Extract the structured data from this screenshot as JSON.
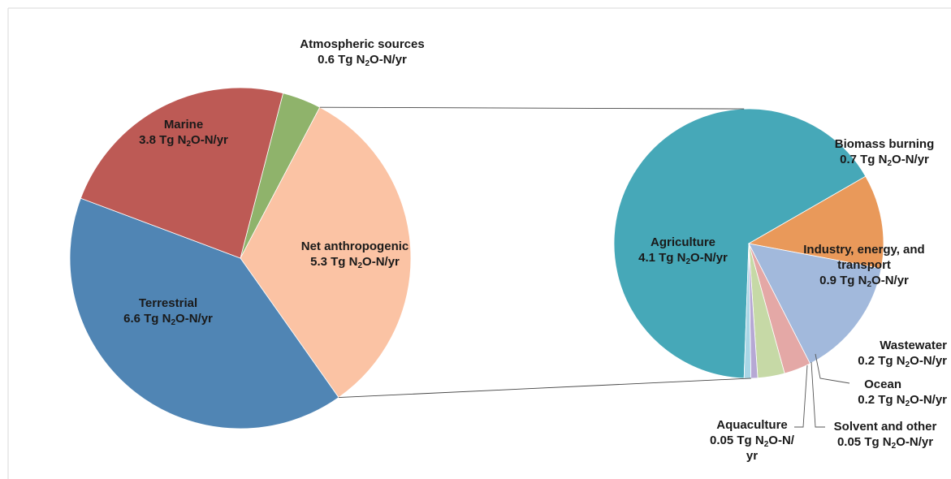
{
  "chart_data": [
    {
      "type": "pie",
      "unit": "Tg N₂O-N/yr",
      "slices": [
        {
          "name": "Atmospheric sources",
          "value": 0.6,
          "color": "#8fb36b"
        },
        {
          "name": "Net anthropogenic",
          "value": 5.3,
          "color": "#fbc3a4"
        },
        {
          "name": "Terrestrial",
          "value": 6.6,
          "color": "#5085b4"
        },
        {
          "name": "Marine",
          "value": 3.8,
          "color": "#bd5a55"
        }
      ],
      "labels": {
        "atmospheric": {
          "name": "Atmospheric sources",
          "value_text": "0.6 Tg N",
          "sub": "2",
          "unit_text": "O-N/yr"
        },
        "net": {
          "name": "Net anthropogenic",
          "value_text": "5.3 Tg N",
          "sub": "2",
          "unit_text": "O-N/yr"
        },
        "terrestrial": {
          "name": "Terrestrial",
          "value_text": "6.6 Tg N",
          "sub": "2",
          "unit_text": "O-N/yr"
        },
        "marine": {
          "name": "Marine",
          "value_text": "3.8 Tg N",
          "sub": "2",
          "unit_text": "O-N/yr"
        }
      }
    },
    {
      "type": "pie",
      "unit": "Tg N₂O-N/yr",
      "slices": [
        {
          "name": "Agriculture",
          "value": 4.1,
          "color": "#46a8b8"
        },
        {
          "name": "Biomass burning",
          "value": 0.7,
          "color": "#e9995a"
        },
        {
          "name": "Industry, energy, and transport",
          "value": 0.9,
          "color": "#a2b9dc"
        },
        {
          "name": "Wastewater",
          "value": 0.2,
          "color": "#e4a8a6"
        },
        {
          "name": "Ocean",
          "value": 0.2,
          "color": "#c6d9a6"
        },
        {
          "name": "Solvent and other",
          "value": 0.05,
          "color": "#b6a8d4"
        },
        {
          "name": "Aquaculture",
          "value": 0.05,
          "color": "#a9d6e6"
        }
      ],
      "labels": {
        "agriculture": {
          "name": "Agriculture",
          "value_text": "4.1 Tg N",
          "sub": "2",
          "unit_text": "O-N/yr"
        },
        "biomass": {
          "name": "Biomass burning",
          "value_text": "0.7 Tg N",
          "sub": "2",
          "unit_text": "O-N/yr"
        },
        "industry": {
          "name_line1": "Industry, energy, and",
          "name_line2": "transport",
          "value_text": "0.9 Tg N",
          "sub": "2",
          "unit_text": "O-N/yr"
        },
        "wastewater": {
          "name": "Wastewater",
          "value_text": "0.2 Tg N",
          "sub": "2",
          "unit_text": "O-N/yr"
        },
        "ocean": {
          "name": "Ocean",
          "value_text": "0.2 Tg N",
          "sub": "2",
          "unit_text": "O-N/yr"
        },
        "solvent": {
          "name": "Solvent and other",
          "value_text": "0.05 Tg N",
          "sub": "2",
          "unit_text": "O-N/yr"
        },
        "aquaculture": {
          "name": "Aquaculture",
          "value_text": "0.05 Tg N",
          "sub": "2",
          "unit_text": "O-N/",
          "unit_text2": "yr"
        }
      }
    }
  ]
}
